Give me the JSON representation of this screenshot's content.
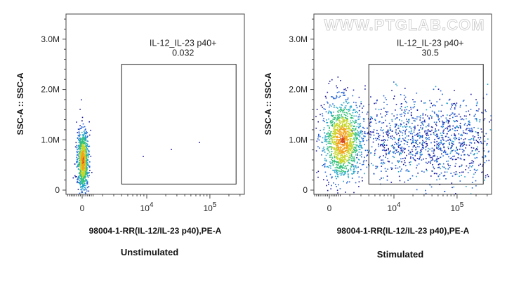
{
  "watermark": "WWW.PTGLAB.COM",
  "colors": {
    "frame": "#444444",
    "gate": "#222222",
    "density_scale": [
      "#1a1a9e",
      "#1f5fd6",
      "#1fa3c8",
      "#34c07a",
      "#c8d62a",
      "#f2a31c",
      "#d23a12"
    ]
  },
  "chart_data": [
    {
      "type": "scatter",
      "caption": "Unstimulated",
      "xlabel": "98004-1-RR(IL-12/IL-23 p40),PE-A",
      "ylabel": "SSC-A :: SSC-A",
      "x_scale": "biexponential",
      "x_ticks": [
        {
          "value": 0,
          "base": "0",
          "exp": ""
        },
        {
          "value": 10000,
          "base": "10",
          "exp": "4"
        },
        {
          "value": 100000,
          "base": "10",
          "exp": "5"
        }
      ],
      "y_ticks": [
        {
          "value": 0,
          "label": "0"
        },
        {
          "value": 1000000,
          "label": "1.0M"
        },
        {
          "value": 2000000,
          "label": "2.0M"
        },
        {
          "value": 3000000,
          "label": "3.0M"
        }
      ],
      "gate": {
        "name": "IL-12_IL-23 p40+",
        "percent": "0.032",
        "x_range": [
          4000,
          260000
        ],
        "y_range": [
          120000,
          2500000
        ]
      },
      "populations": [
        {
          "x_center": 200,
          "x_spread": 260,
          "y_center": 600000,
          "y_spread": 300000,
          "n": 900,
          "density": "high"
        },
        {
          "x_center": 9000,
          "x_spread": 60000,
          "y_center": 700000,
          "y_spread": 150000,
          "n": 3,
          "density": "low"
        }
      ]
    },
    {
      "type": "scatter",
      "caption": "Stimulated",
      "xlabel": "98004-1-RR(IL-12/IL-23 p40),PE-A",
      "ylabel": "SSC-A :: SSC-A",
      "x_scale": "biexponential",
      "x_ticks": [
        {
          "value": 0,
          "base": "0",
          "exp": ""
        },
        {
          "value": 10000,
          "base": "10",
          "exp": "4"
        },
        {
          "value": 100000,
          "base": "10",
          "exp": "5"
        }
      ],
      "y_ticks": [
        {
          "value": 0,
          "label": "0"
        },
        {
          "value": 1000000,
          "label": "1.0M"
        },
        {
          "value": 2000000,
          "label": "2.0M"
        },
        {
          "value": 3000000,
          "label": "3.0M"
        }
      ],
      "gate": {
        "name": "IL-12_IL-23 p40+",
        "percent": "30.5",
        "x_range": [
          4000,
          260000
        ],
        "y_range": [
          120000,
          2500000
        ]
      },
      "populations": [
        {
          "x_center": 1500,
          "x_spread": 700,
          "y_center": 1000000,
          "y_spread": 400000,
          "n": 1300,
          "density": "high"
        },
        {
          "x_center": 35000,
          "x_spread": 1.2,
          "y_center": 1000000,
          "y_spread": 420000,
          "n": 1200,
          "density": "low"
        }
      ]
    }
  ]
}
